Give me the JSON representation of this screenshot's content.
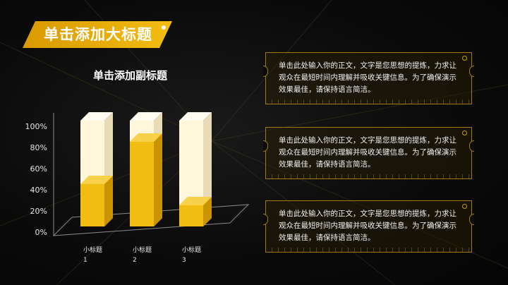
{
  "header": {
    "title": "单击添加大标题"
  },
  "chart_data": {
    "type": "bar",
    "title": "单击添加副标题",
    "categories": [
      "小标题\n1",
      "小标题\n2",
      "小标题\n3"
    ],
    "values": [
      40,
      80,
      20
    ],
    "ylim": [
      0,
      100
    ],
    "yticks": [
      "0%",
      "20%",
      "40%",
      "60%",
      "80%",
      "100%"
    ],
    "colors": {
      "fill": "#f2bd12",
      "background": "#fff6dc"
    }
  },
  "panels": [
    {
      "text": "单击此处输入你的正文，文字是您思想的提炼，力求让观众在最短时间内理解并吸收关键信息。为了确保演示效果最佳，请保持语言简洁。"
    },
    {
      "text": "单击此处输入你的正文，文字是您思想的提炼，力求让观众在最短时间内理解并吸收关键信息。为了确保演示效果最佳，请保持语言简洁。"
    },
    {
      "text": "单击此处输入你的正文，文字是您思想的提炼，力求让观众在最短时间内理解并吸收关键信息。为了确保演示效果最佳，请保持语言简洁。"
    }
  ]
}
